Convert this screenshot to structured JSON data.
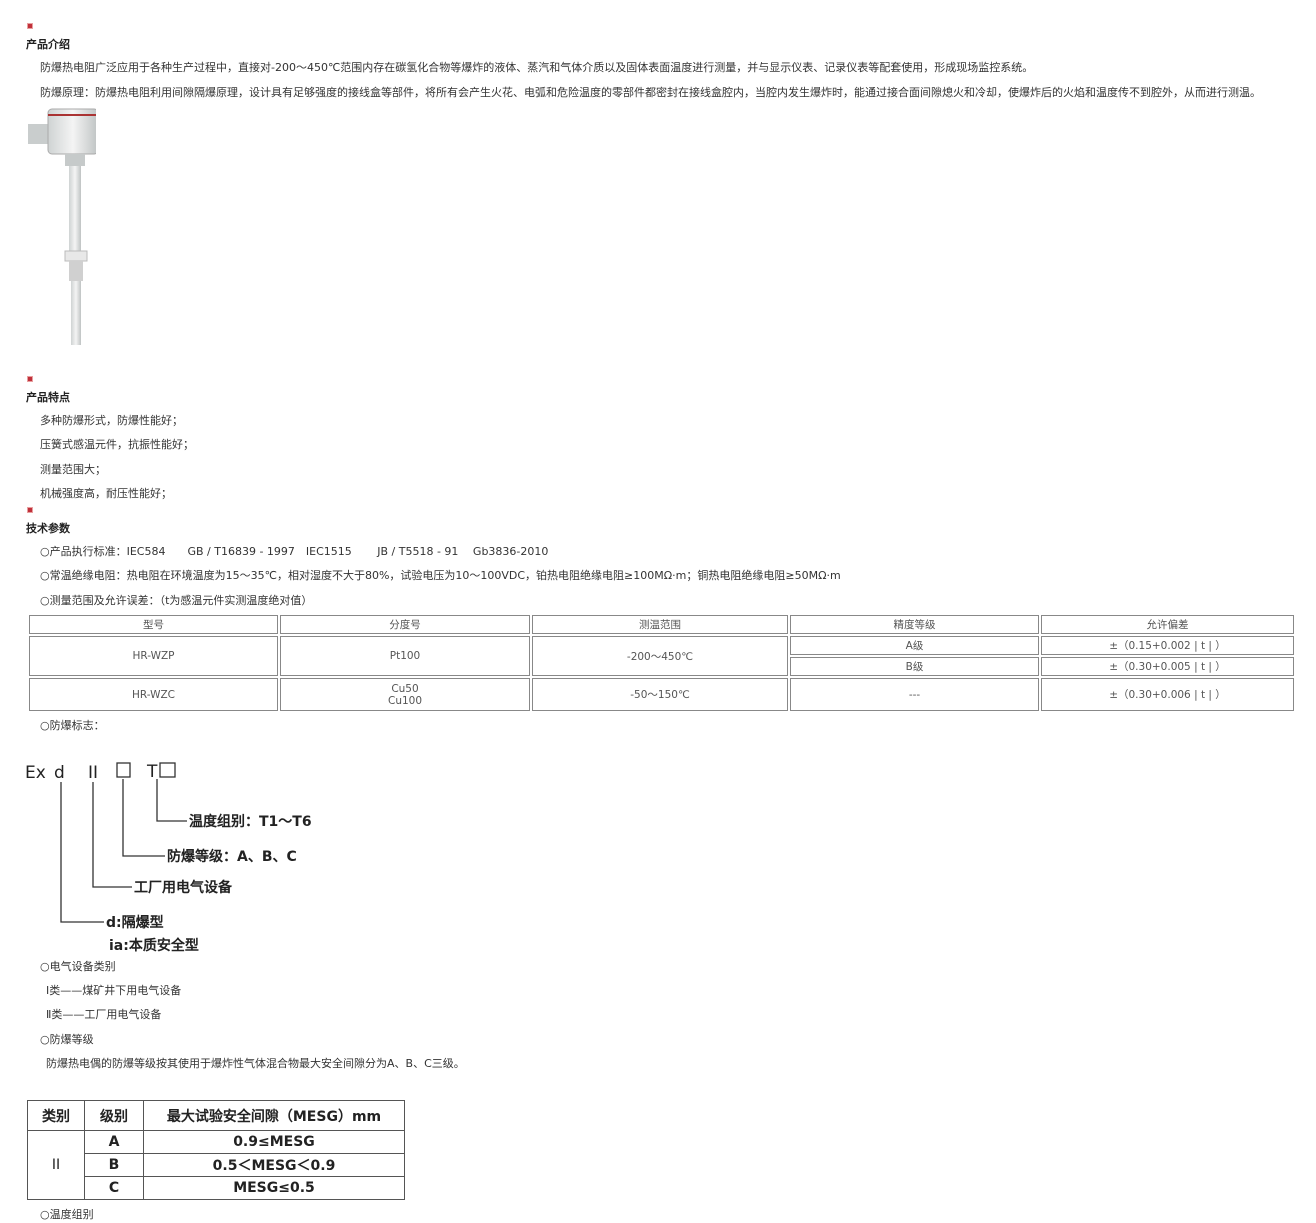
{
  "intro": {
    "title": "产品介绍",
    "paragraphs": [
      "防爆热电阻广泛应用于各种生产过程中，直接对-200～450℃范围内存在碳氢化合物等爆炸的液体、蒸汽和气体介质以及固体表面温度进行测量，并与显示仪表、记录仪表等配套使用，形成现场监控系统。",
      "防爆原理：防爆热电阻利用间隙隔爆原理，设计具有足够强度的接线盒等部件，将所有会产生火花、电弧和危险温度的零部件都密封在接线盒腔内，当腔内发生爆炸时，能通过接合面间隙熄火和冷却，使爆炸后的火焰和温度传不到腔外，从而进行测温。"
    ]
  },
  "features": {
    "title": "产品特点",
    "items": [
      "多种防爆形式，防爆性能好；",
      "压簧式感温元件，抗振性能好；",
      "测量范围大；",
      "机械强度高，耐压性能好；"
    ]
  },
  "tech": {
    "title": "技术参数",
    "standards": "○产品执行标准：IEC584　　GB / T16839 - 1997　IEC1515　　 JB / T5518 - 91　 Gb3836-2010",
    "insulation": "○常温绝缘电阻：热电阻在环境温度为15～35℃，相对湿度不大于80%，试验电压为10～100VDC，铂热电阻绝缘电阻≥100MΩ·m；铜热电阻绝缘电阻≥50MΩ·m",
    "range_note": "○测量范围及允许误差：（t为感温元件实测温度绝对值）",
    "table": {
      "headers": [
        "型号",
        "分度号",
        "测温范围",
        "精度等级",
        "允许偏差"
      ],
      "rows": [
        {
          "model": "HR-WZP",
          "index": "Pt100",
          "range": "-200～450℃",
          "grades": [
            "A级",
            "B级"
          ],
          "tolerances": [
            "±（0.15+0.002 | t | ）",
            "±（0.30+0.005 | t | ）"
          ]
        },
        {
          "model": "HR-WZC",
          "index": [
            "Cu50",
            "Cu100"
          ],
          "range": "-50～150℃",
          "grade": "---",
          "tolerance": "±（0.30+0.006 | t | ）"
        }
      ]
    },
    "ex_mark_label": "○防爆标志：",
    "diagram": {
      "code": [
        "Ex",
        "d",
        "II",
        "T"
      ],
      "labels": [
        "温度组别：T1～T6",
        "防爆等级：A、B、C",
        "工厂用电气设备",
        "d:隔爆型",
        "ia:本质安全型"
      ]
    },
    "category_label": "○电气设备类别",
    "categories": [
      "Ⅰ类——煤矿井下用电气设备",
      "Ⅱ类——工厂用电气设备"
    ],
    "grade_label": "○防爆等级",
    "grade_text": "防爆热电偶的防爆等级按其使用于爆炸性气体混合物最大安全间隙分为A、B、C三级。",
    "mesg_table": {
      "headers": [
        "类别",
        "级别",
        "最大试验安全间隙（MESG）mm"
      ],
      "category": "II",
      "rows": [
        [
          "A",
          "0.9≤MESG"
        ],
        [
          "B",
          "0.5＜MESG＜0.9"
        ],
        [
          "C",
          "MESG≤0.5"
        ]
      ]
    },
    "temp_group_label": "○温度组别"
  },
  "colors": {
    "marker": "#c0303a"
  }
}
